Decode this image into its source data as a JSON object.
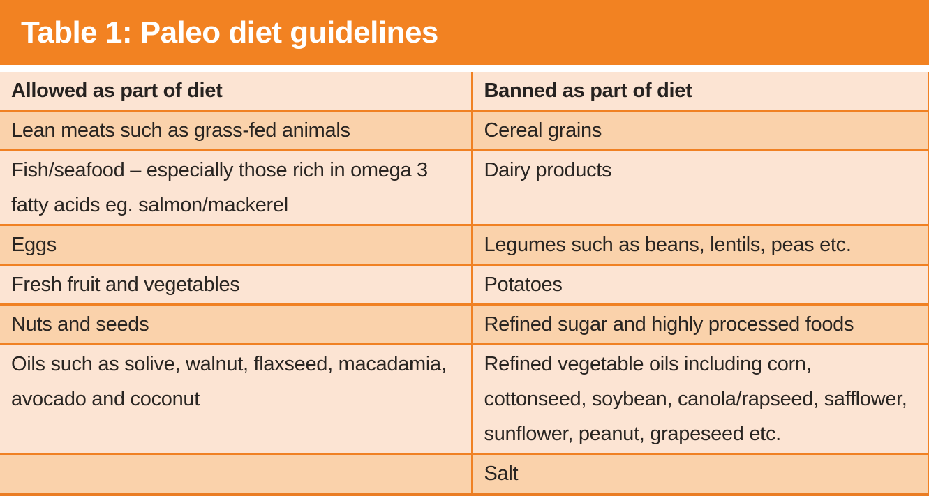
{
  "title": "Table 1: Paleo diet guidelines",
  "colors": {
    "title_bar": "#F28222",
    "row_light": "#FCE4D3",
    "row_dark": "#FAD2AB",
    "border": "#F08123",
    "bottom_border": "#EA7D24",
    "title_text": "#ffffff",
    "cell_text": "#292522"
  },
  "table": {
    "headers": [
      "Allowed as part of diet",
      "Banned as part of diet"
    ],
    "rows": [
      [
        "Lean meats such as grass-fed animals",
        "Cereal grains"
      ],
      [
        "Fish/seafood – especially those rich in omega 3 fatty acids eg. salmon/mackerel",
        "Dairy products"
      ],
      [
        "Eggs",
        "Legumes such as beans, lentils, peas etc."
      ],
      [
        "Fresh fruit and vegetables",
        "Potatoes"
      ],
      [
        "Nuts and seeds",
        "Refined sugar and highly processed foods"
      ],
      [
        "Oils such as solive, walnut, flaxseed, macadamia, avocado and coconut",
        "Refined vegetable oils including corn, cottonseed, soybean, canola/rapseed, safflower, sunflower, peanut, grapeseed etc."
      ],
      [
        "",
        "Salt"
      ]
    ]
  }
}
